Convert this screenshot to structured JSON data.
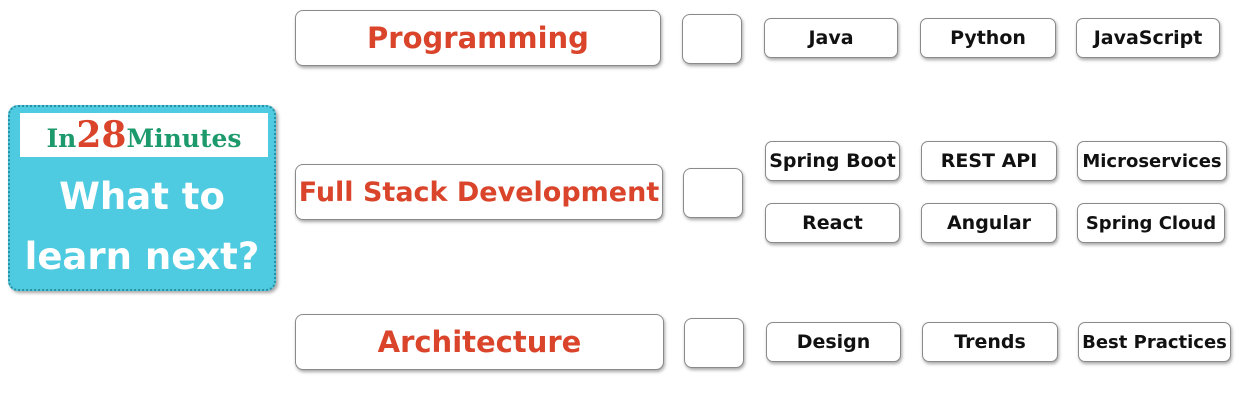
{
  "brand": {
    "logo_prefix": "In",
    "logo_number": "28",
    "logo_suffix": "Minutes",
    "headline_line1": "What to",
    "headline_line2": "learn next?",
    "colors": {
      "card": "#4ecbe0",
      "logo_green": "#1d9a6c",
      "accent_red": "#d9442b"
    }
  },
  "topics": [
    {
      "label": "Programming",
      "items": [
        "Java",
        "Python",
        "JavaScript"
      ]
    },
    {
      "label": "Full Stack Development",
      "items": [
        "Spring Boot",
        "REST API",
        "Microservices",
        "React",
        "Angular",
        "Spring Cloud"
      ]
    },
    {
      "label": "Architecture",
      "items": [
        "Design",
        "Trends",
        "Best Practices"
      ]
    }
  ]
}
